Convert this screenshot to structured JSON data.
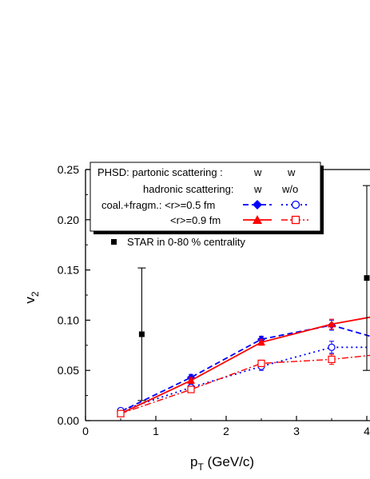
{
  "chart_data": {
    "type": "line",
    "xlabel": {
      "main": "p",
      "sub": "T",
      "rest": " (GeV/c)"
    },
    "ylabel": {
      "main": "v",
      "sub": "2"
    },
    "xlim": [
      0,
      4.05
    ],
    "ylim": [
      0,
      0.25
    ],
    "x_ticks": [
      0,
      1,
      2,
      3,
      4
    ],
    "y_ticks": [
      0.0,
      0.05,
      0.1,
      0.15,
      0.2,
      0.25
    ],
    "x_tick_labels": [
      "0",
      "1",
      "2",
      "3",
      "4"
    ],
    "y_tick_labels": [
      "0.00",
      "0.05",
      "0.10",
      "0.15",
      "0.20",
      "0.25"
    ],
    "legend": {
      "header_left": "PHSD: partonic scattering :",
      "header_col1": "w",
      "header_col2": "w",
      "row2_left": "hadronic scattering:",
      "row2_col1": "w",
      "row2_col2": "w/o",
      "row3_left": "coal.+fragm.: <r>=0.5 fm",
      "row4_left": "<r>=0.9 fm",
      "star_label": "STAR in 0-80 % centrality"
    },
    "series": [
      {
        "style": "blue-dash-diamond",
        "color": "#0000ff",
        "x": [
          0.5,
          1.5,
          2.5,
          3.5,
          4.05
        ],
        "y": [
          0.009,
          0.043,
          0.081,
          0.095,
          0.084
        ],
        "err": [
          0.002,
          0.003,
          0.003,
          0.005,
          0
        ]
      },
      {
        "style": "blue-dot-circle",
        "color": "#0000ff",
        "x": [
          0.5,
          1.5,
          2.5,
          3.5,
          4.05
        ],
        "y": [
          0.01,
          0.033,
          0.054,
          0.073,
          0.073
        ],
        "err": [
          0.002,
          0.003,
          0.004,
          0.006,
          0
        ]
      },
      {
        "style": "red-solid-triangle",
        "color": "#ff0000",
        "x": [
          0.5,
          1.5,
          2.5,
          3.5,
          4.05
        ],
        "y": [
          0.007,
          0.04,
          0.078,
          0.096,
          0.103
        ],
        "err": [
          0.002,
          0.003,
          0.003,
          0.005,
          0
        ]
      },
      {
        "style": "red-dashdot-square",
        "color": "#ff0000",
        "x": [
          0.5,
          1.5,
          2.5,
          3.5,
          4.05
        ],
        "y": [
          0.007,
          0.031,
          0.057,
          0.061,
          0.065
        ],
        "err": [
          0.002,
          0.003,
          0.003,
          0.005,
          0
        ]
      },
      {
        "style": "black-square-errbar",
        "color": "#000000",
        "x": [
          0.8,
          4.0
        ],
        "y": [
          0.086,
          0.142
        ],
        "err_low": [
          0.066,
          0.092
        ],
        "err_high": [
          0.066,
          0.092
        ]
      }
    ]
  }
}
